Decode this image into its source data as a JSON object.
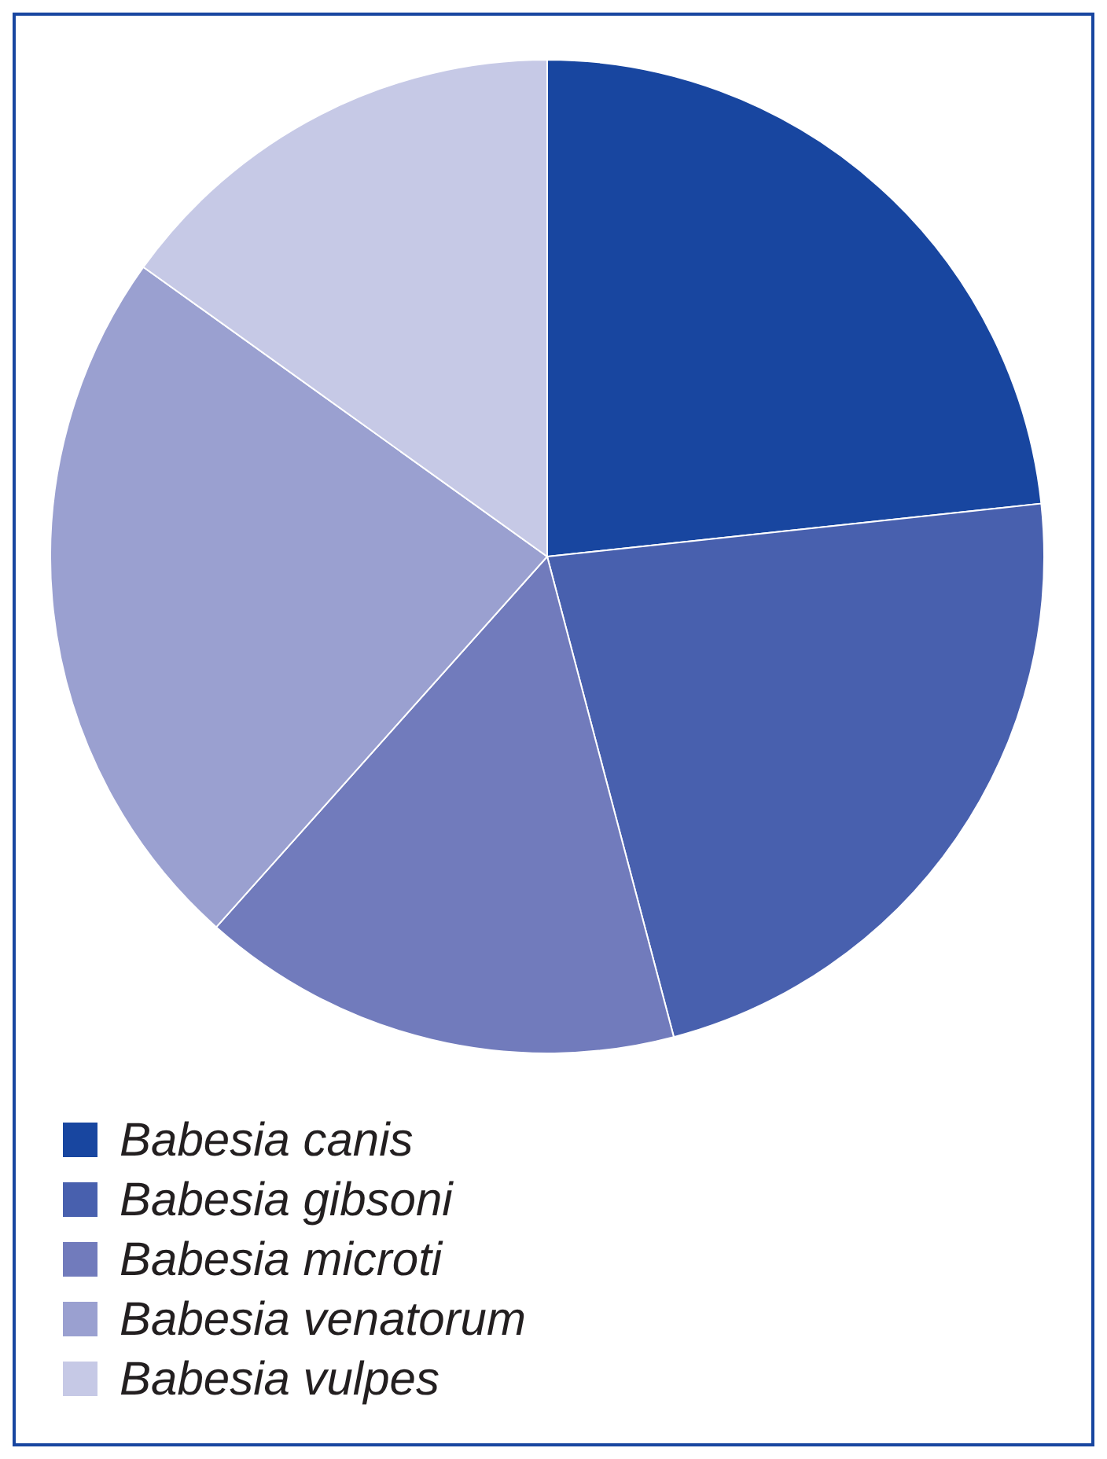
{
  "chart_data": {
    "type": "pie",
    "categories": [
      "Babesia canis",
      "Babesia gibsoni",
      "Babesia microti",
      "Babesia venatorum",
      "Babesia vulpes"
    ],
    "values": [
      23.3,
      22.6,
      15.7,
      23.3,
      15.1
    ],
    "colors": [
      "#1846a0",
      "#4860ae",
      "#717bbc",
      "#9aa0d0",
      "#c6c9e6"
    ],
    "legend": "bottom"
  }
}
